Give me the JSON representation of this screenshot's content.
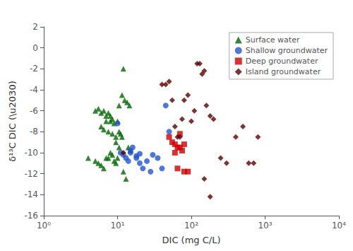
{
  "chart_data": {
    "type": "scatter",
    "xlabel": "DIC (mg C/L)",
    "ylabel": "δ¹³C DIC (\\u2030)",
    "log": "x",
    "xlim": [
      1,
      10000
    ],
    "xticks": [
      {
        "value": 1,
        "label": "10⁰"
      },
      {
        "value": 10,
        "label": "10¹"
      },
      {
        "value": 100,
        "label": "10²"
      },
      {
        "value": 1000,
        "label": "10³"
      },
      {
        "value": 10000,
        "label": "10⁴"
      }
    ],
    "ylim": [
      -16,
      2
    ],
    "yticks": [
      2,
      0,
      -2,
      -4,
      -6,
      -8,
      -10,
      -12,
      -14,
      -16
    ],
    "grid": false,
    "legend": "upper right",
    "series": [
      {
        "name": "Surface water",
        "color": "#006600",
        "marker": "triangle",
        "x": [
          4,
          5,
          5.5,
          6,
          6.5,
          7,
          7.5,
          8,
          8.5,
          9,
          9.5,
          10,
          10.5,
          11,
          11.5,
          12,
          13,
          14,
          15,
          6,
          7,
          8,
          9,
          10,
          5,
          6,
          7,
          8,
          6.5,
          7.5,
          8.5,
          9.5,
          10.5,
          5.5,
          6.5,
          7.5,
          8.5,
          9.5,
          10.5,
          11.5,
          12.5,
          13.5,
          14.5,
          12
        ],
        "values": [
          -10.5,
          -10.8,
          -11.0,
          -11.2,
          -11.5,
          -10.5,
          -10.5,
          -10.0,
          -10.2,
          -10.8,
          -11.0,
          -10.5,
          -8.0,
          -8.2,
          -8.5,
          -11.8,
          -12.5,
          -9.5,
          -9.8,
          -7.5,
          -7.0,
          -6.5,
          -7.2,
          -7.0,
          -6.0,
          -6.2,
          -6.5,
          -7.0,
          -7.8,
          -8.0,
          -8.2,
          -8.5,
          -5.5,
          -5.8,
          -6.0,
          -6.2,
          -6.8,
          -9.0,
          -9.5,
          -4.5,
          -5.0,
          -5.2,
          -5.5,
          -2.0
        ]
      },
      {
        "name": "Shallow groundwater",
        "color": "#2255cc",
        "marker": "circle",
        "x": [
          10,
          11,
          12,
          13,
          14,
          15,
          16,
          18,
          20,
          22,
          25,
          28,
          30,
          35,
          40,
          45,
          50,
          15,
          18,
          20
        ],
        "values": [
          -7.2,
          -10.0,
          -10.2,
          -10.5,
          -10.8,
          -10.0,
          -9.5,
          -10.5,
          -11.0,
          -11.5,
          -10.8,
          -11.8,
          -10.2,
          -10.5,
          -11.5,
          -5.5,
          -8.0,
          -9.8,
          -10.3,
          -10.1
        ]
      },
      {
        "name": "Deep groundwater",
        "color": "#cc0000",
        "marker": "square",
        "x": [
          50,
          55,
          60,
          65,
          70,
          75,
          80,
          90,
          60,
          65,
          70,
          80
        ],
        "values": [
          -8.5,
          -9.0,
          -9.2,
          -9.5,
          -8.2,
          -9.8,
          -11.8,
          -11.8,
          -10.0,
          -11.5,
          -9.5,
          -9.2
        ]
      },
      {
        "name": "Island groundwater",
        "color": "#5a0000",
        "marker": "diamond",
        "x": [
          12,
          40,
          45,
          50,
          55,
          60,
          65,
          70,
          75,
          80,
          90,
          100,
          110,
          120,
          130,
          140,
          150,
          160,
          180,
          200,
          250,
          300,
          400,
          500,
          600,
          700,
          800,
          150,
          180
        ],
        "values": [
          -10.0,
          -3.5,
          -3.5,
          -3.2,
          -5.0,
          -7.5,
          -8.5,
          -8.5,
          -6.8,
          -5.0,
          -4.5,
          -7.0,
          -6.0,
          -1.5,
          -1.5,
          -2.5,
          -2.2,
          -5.5,
          -6.5,
          -6.8,
          -10.5,
          -11.0,
          -8.5,
          -7.5,
          -11.0,
          -11.0,
          -8.5,
          -12.5,
          -14.2
        ]
      }
    ]
  }
}
